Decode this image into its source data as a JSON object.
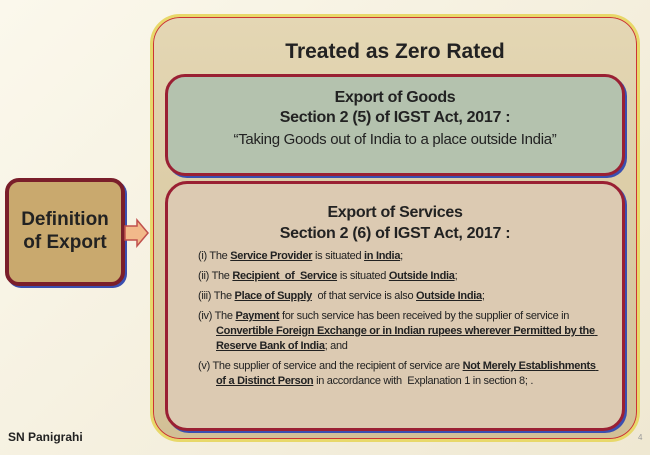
{
  "definition": {
    "lines": [
      "Definition",
      "of Export"
    ]
  },
  "zero_rated": {
    "title": "Treated as Zero Rated",
    "goods": {
      "heading": "Export of Goods",
      "section": "Section 2 (5) of IGST Act, 2017 :",
      "quote": "“Taking Goods out of India to a place outside India”"
    },
    "services": {
      "heading": "Export of Services",
      "section": "Section 2 (6) of IGST Act, 2017 :",
      "items": [
        [
          {
            "text": "(i) The ",
            "bold": false
          },
          {
            "text": "Service Provider",
            "bold": true
          },
          {
            "text": " is situated ",
            "bold": false
          },
          {
            "text": "in India",
            "bold": true
          },
          {
            "text": ";",
            "bold": false
          }
        ],
        [
          {
            "text": "(ii) The ",
            "bold": false
          },
          {
            "text": "Recipient  of  Service",
            "bold": true
          },
          {
            "text": " is situated ",
            "bold": false
          },
          {
            "text": "Outside India",
            "bold": true
          },
          {
            "text": ";",
            "bold": false
          }
        ],
        [
          {
            "text": "(iii) The ",
            "bold": false
          },
          {
            "text": "Place of Supply",
            "bold": true
          },
          {
            "text": "  of that service is also ",
            "bold": false
          },
          {
            "text": "Outside India",
            "bold": true
          },
          {
            "text": ";",
            "bold": false
          }
        ],
        [
          {
            "text": "(iv) The ",
            "bold": false
          },
          {
            "text": "Payment",
            "bold": true
          },
          {
            "text": " for such service has been received by the supplier of service in ",
            "bold": false
          },
          {
            "text": "Convertible Foreign Exchange or in Indian rupees wherever Permitted by the Reserve Bank of India",
            "bold": true
          },
          {
            "text": "; and",
            "bold": false
          }
        ],
        [
          {
            "text": "(v) The supplier of service and the recipient of service are ",
            "bold": false
          },
          {
            "text": "Not Merely Establishments of a Distinct Person",
            "bold": true
          },
          {
            "text": " in accordance with  Explanation 1 in section 8; .",
            "bold": false
          }
        ]
      ]
    }
  },
  "footer": {
    "author": "SN Panigrahi",
    "page": "4"
  }
}
